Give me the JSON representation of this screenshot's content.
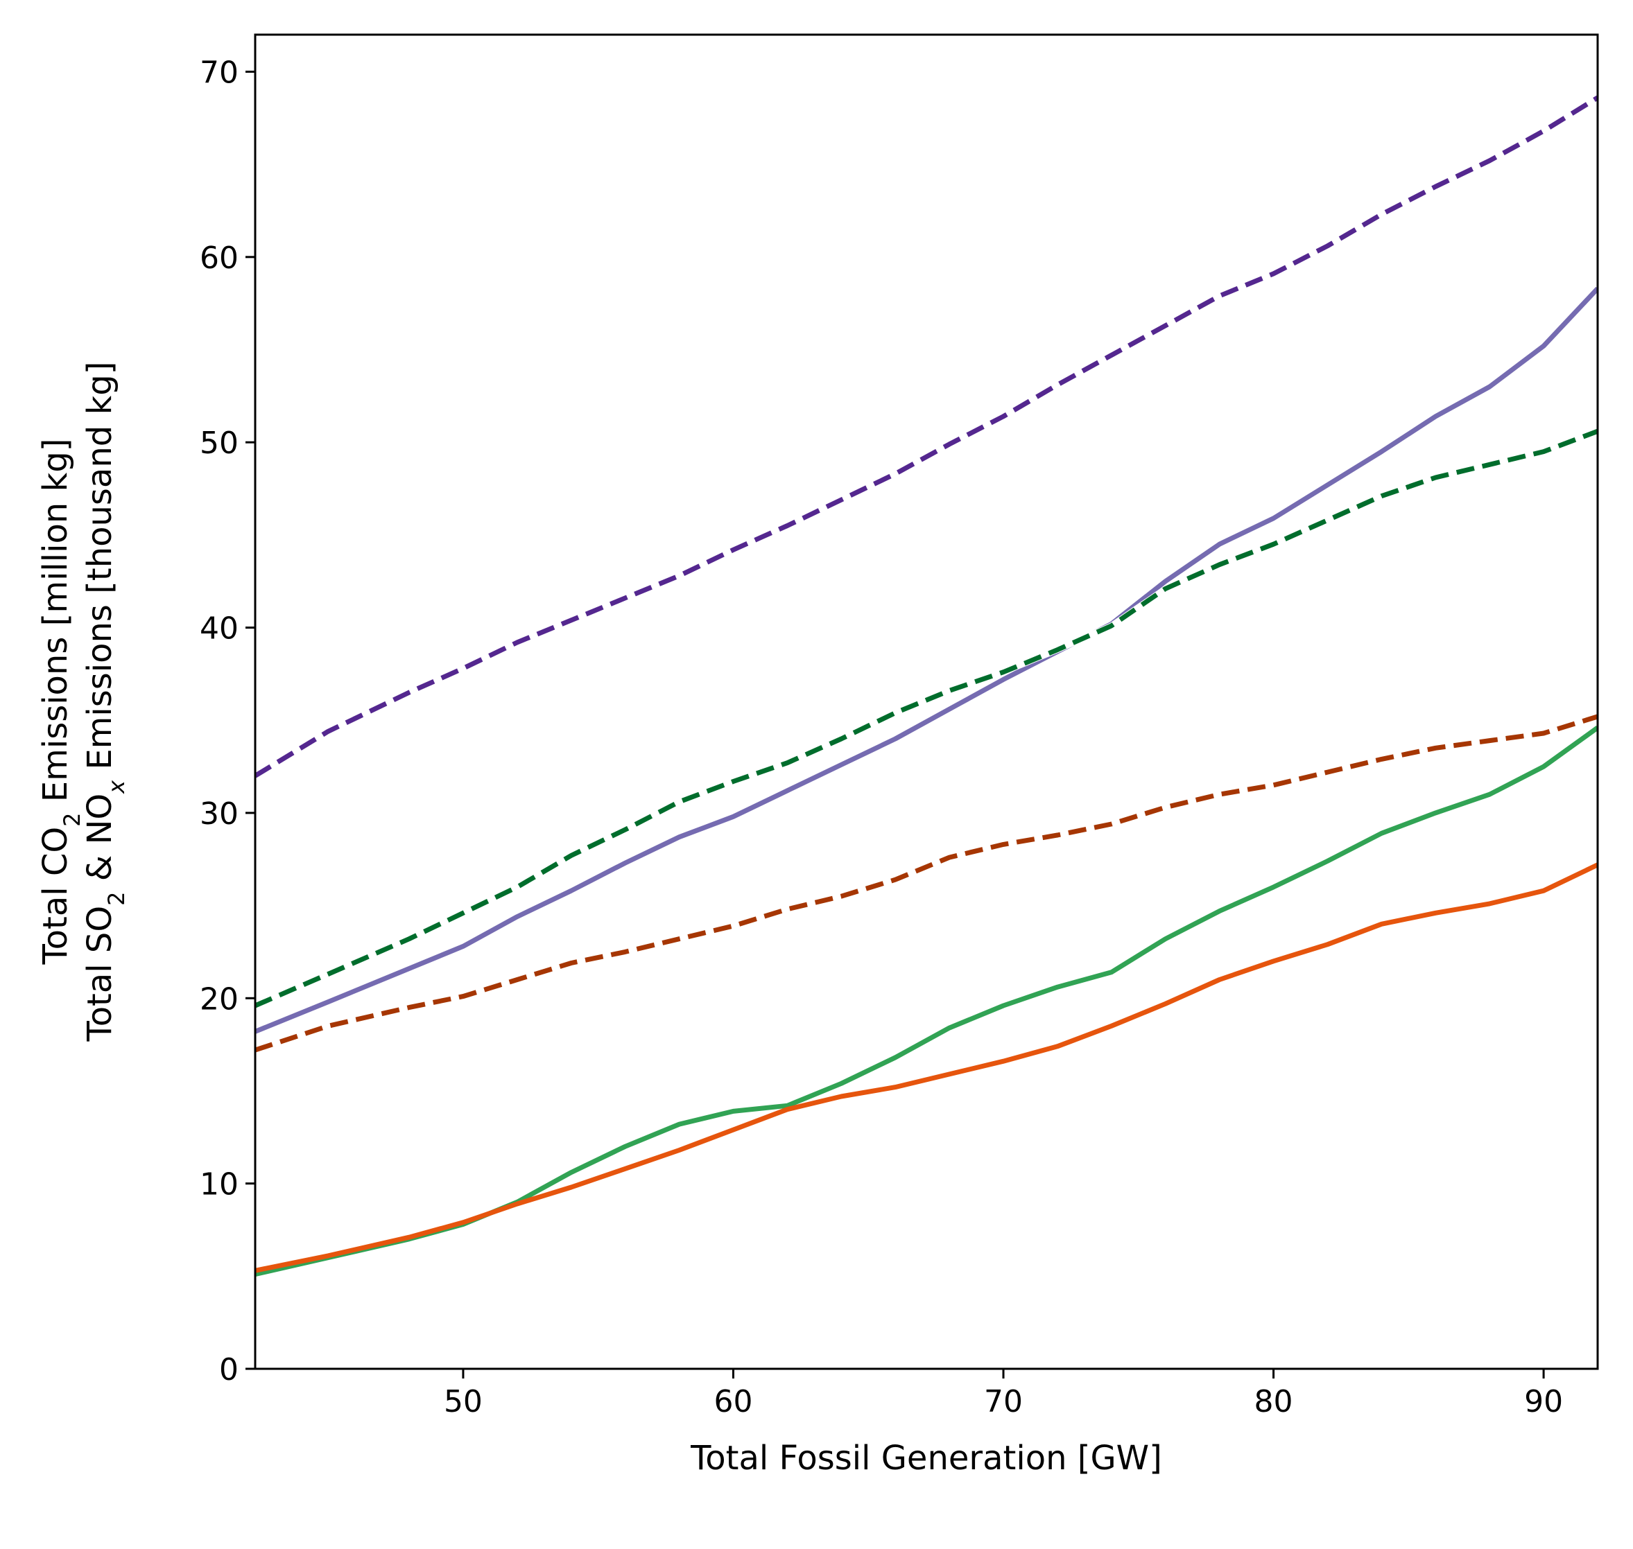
{
  "chart_data": {
    "type": "line",
    "xlabel": "Total Fossil Generation [GW]",
    "ylabel_lines": [
      [
        "Total CO",
        "2",
        " Emissions [million kg]"
      ],
      [
        "Total SO",
        "2",
        " & NO",
        "x",
        " Emissions [thousand kg]"
      ]
    ],
    "xlim": [
      42.3,
      92.0
    ],
    "ylim": [
      0,
      72
    ],
    "xticks": [
      50,
      60,
      70,
      80,
      90
    ],
    "yticks": [
      0,
      10,
      20,
      30,
      40,
      50,
      60,
      70
    ],
    "grid": false,
    "legend": false,
    "series": [
      {
        "color": "#54278f",
        "style": "dashed",
        "white_underlay": true,
        "x": [
          42.3,
          45,
          48,
          50,
          52,
          54,
          56,
          58,
          60,
          62,
          64,
          66,
          68,
          70,
          72,
          74,
          76,
          78,
          80,
          82,
          84,
          86,
          88,
          90,
          92
        ],
        "y": [
          32.0,
          34.4,
          36.5,
          37.8,
          39.2,
          40.4,
          41.6,
          42.8,
          44.2,
          45.5,
          46.9,
          48.3,
          49.9,
          51.4,
          53.1,
          54.7,
          56.3,
          57.9,
          59.1,
          60.6,
          62.3,
          63.8,
          65.2,
          66.8,
          68.6
        ]
      },
      {
        "color": "#756bb1",
        "style": "solid",
        "x": [
          42.3,
          45,
          48,
          50,
          52,
          54,
          56,
          58,
          60,
          62,
          64,
          66,
          68,
          70,
          72,
          74,
          76,
          78,
          80,
          82,
          84,
          86,
          88,
          90,
          92
        ],
        "y": [
          18.2,
          19.8,
          21.6,
          22.8,
          24.4,
          25.8,
          27.3,
          28.7,
          29.8,
          31.2,
          32.6,
          34.0,
          35.6,
          37.2,
          38.7,
          40.2,
          42.5,
          44.5,
          45.9,
          47.7,
          49.5,
          51.4,
          53.0,
          55.2,
          58.3
        ]
      },
      {
        "color": "#006d2c",
        "style": "dashed",
        "white_underlay": true,
        "x": [
          42.3,
          45,
          48,
          50,
          52,
          54,
          56,
          58,
          60,
          62,
          64,
          66,
          68,
          70,
          72,
          74,
          76,
          78,
          80,
          82,
          84,
          86,
          88,
          90,
          92
        ],
        "y": [
          19.6,
          21.3,
          23.2,
          24.6,
          26.0,
          27.7,
          29.1,
          30.6,
          31.7,
          32.7,
          34.0,
          35.4,
          36.6,
          37.6,
          38.8,
          40.1,
          42.1,
          43.4,
          44.5,
          45.8,
          47.1,
          48.1,
          48.8,
          49.5,
          50.6
        ]
      },
      {
        "color": "#a63603",
        "style": "dashed",
        "white_underlay": true,
        "x": [
          42.3,
          45,
          48,
          50,
          52,
          54,
          56,
          58,
          60,
          62,
          64,
          66,
          68,
          70,
          72,
          74,
          76,
          78,
          80,
          82,
          84,
          86,
          88,
          90,
          92
        ],
        "y": [
          17.2,
          18.5,
          19.5,
          20.1,
          21.0,
          21.9,
          22.5,
          23.2,
          23.9,
          24.8,
          25.5,
          26.4,
          27.6,
          28.3,
          28.8,
          29.4,
          30.3,
          31.0,
          31.5,
          32.2,
          32.9,
          33.5,
          33.9,
          34.3,
          35.2
        ]
      },
      {
        "color": "#31a354",
        "style": "solid",
        "x": [
          42.3,
          45,
          48,
          50,
          52,
          54,
          56,
          58,
          60,
          62,
          64,
          66,
          68,
          70,
          72,
          74,
          76,
          78,
          80,
          82,
          84,
          86,
          88,
          90,
          92
        ],
        "y": [
          5.1,
          6.0,
          7.0,
          7.8,
          9.0,
          10.6,
          12.0,
          13.2,
          13.9,
          14.2,
          15.4,
          16.8,
          18.4,
          19.6,
          20.6,
          21.4,
          23.2,
          24.7,
          26.0,
          27.4,
          28.9,
          30.0,
          31.0,
          32.5,
          34.6
        ]
      },
      {
        "color": "#e6550d",
        "style": "solid",
        "x": [
          42.3,
          45,
          48,
          50,
          52,
          54,
          56,
          58,
          60,
          62,
          64,
          66,
          68,
          70,
          72,
          74,
          76,
          78,
          80,
          82,
          84,
          86,
          88,
          90,
          92
        ],
        "y": [
          5.3,
          6.1,
          7.1,
          7.9,
          8.9,
          9.8,
          10.8,
          11.8,
          12.9,
          14.0,
          14.7,
          15.2,
          15.9,
          16.6,
          17.4,
          18.5,
          19.7,
          21.0,
          22.0,
          22.9,
          24.0,
          24.6,
          25.1,
          25.8,
          27.2
        ]
      }
    ]
  }
}
